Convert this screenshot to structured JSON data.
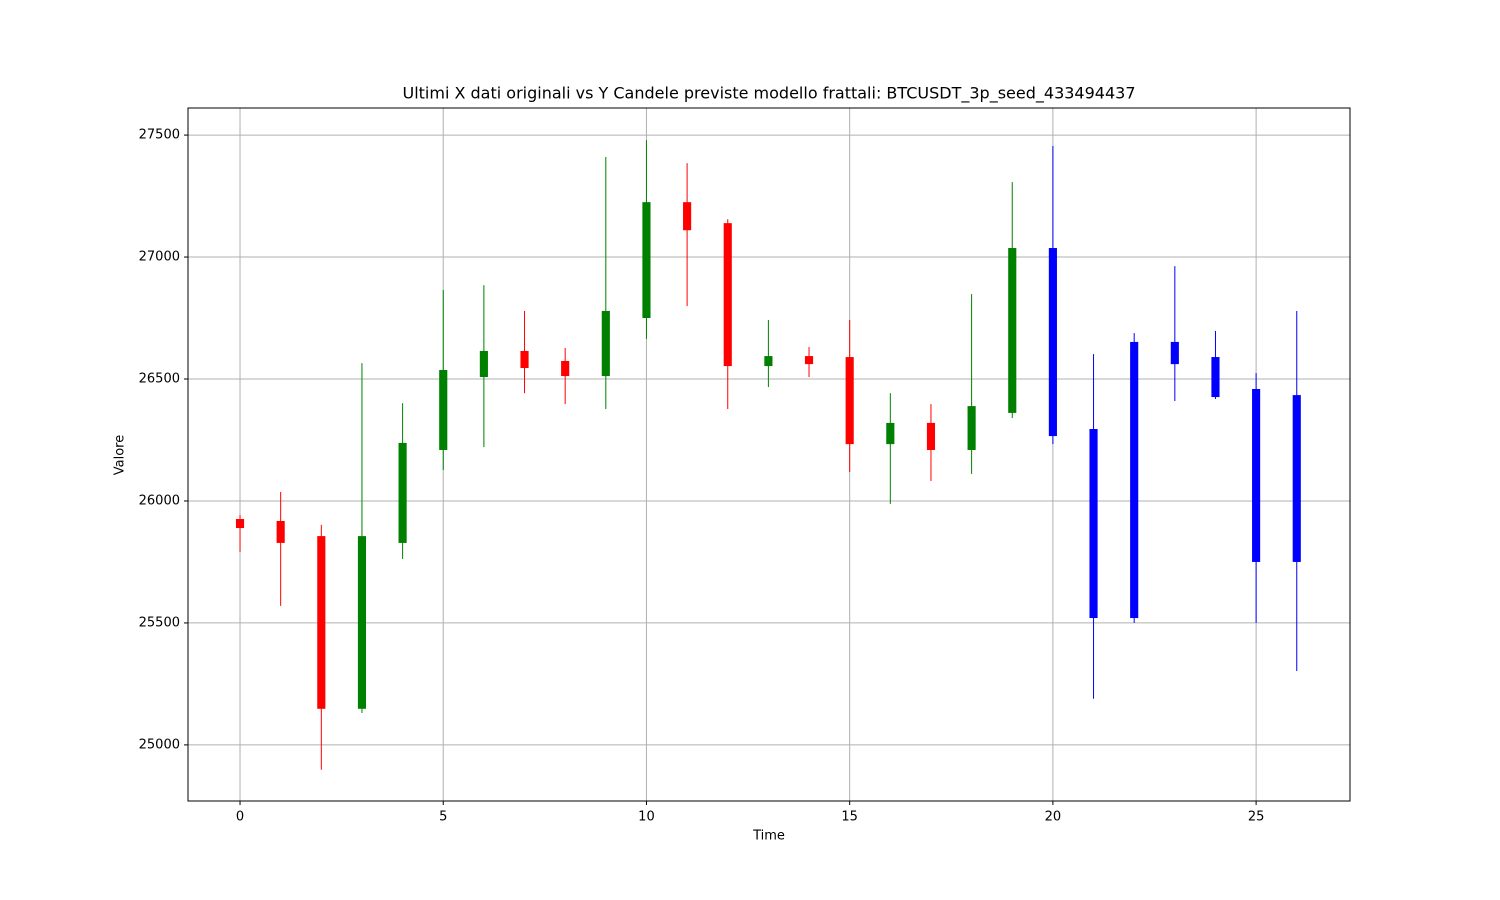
{
  "chart_data": {
    "type": "candlestick",
    "title": "Ultimi X dati originali vs Y Candele previste modello frattali: BTCUSDT_3p_seed_433494437",
    "x_label": "Time",
    "y_label": "Valore",
    "x": [
      0,
      1,
      2,
      3,
      4,
      5,
      6,
      7,
      8,
      9,
      10,
      11,
      12,
      13,
      14,
      15,
      16,
      17,
      18,
      19,
      20,
      21,
      22,
      23,
      24,
      25,
      26
    ],
    "open": [
      25926,
      25918,
      25856,
      25148,
      25828,
      26209,
      26508,
      26615,
      26574,
      26512,
      26750,
      27225,
      27139,
      26553,
      26594,
      26590,
      26233,
      26320,
      26209,
      26361,
      27037,
      26295,
      25520,
      26652,
      26590,
      26459,
      26434
    ],
    "high": [
      25943,
      26037,
      25902,
      26565,
      26401,
      26865,
      26885,
      26779,
      26627,
      27410,
      27479,
      27385,
      27155,
      26742,
      26631,
      26742,
      26442,
      26397,
      26848,
      27307,
      27455,
      26602,
      26688,
      26963,
      26697,
      26524,
      26779
    ],
    "low": [
      25791,
      25570,
      24898,
      25131,
      25762,
      26127,
      26221,
      26442,
      26397,
      26377,
      26664,
      26799,
      26377,
      26467,
      26508,
      26119,
      25988,
      26082,
      26111,
      26340,
      26233,
      25189,
      25500,
      26410,
      26418,
      25500,
      25303
    ],
    "close": [
      25889,
      25828,
      25148,
      25856,
      26238,
      26537,
      26615,
      26545,
      26512,
      26779,
      27225,
      27110,
      26553,
      26594,
      26561,
      26233,
      26320,
      26209,
      26389,
      27037,
      26266,
      25520,
      26652,
      26561,
      26426,
      25750,
      25750
    ],
    "colors": [
      "red",
      "red",
      "red",
      "green",
      "green",
      "green",
      "green",
      "red",
      "red",
      "green",
      "green",
      "red",
      "red",
      "green",
      "red",
      "red",
      "green",
      "red",
      "green",
      "green",
      "blue",
      "blue",
      "blue",
      "blue",
      "blue",
      "blue",
      "blue"
    ],
    "xlim": [
      -1.28,
      27.31
    ],
    "ylim": [
      24770,
      27611
    ],
    "xticks": [
      0,
      5,
      10,
      15,
      20,
      25
    ],
    "yticks": [
      25000,
      25500,
      26000,
      26500,
      27000,
      27500
    ],
    "grid": true
  }
}
